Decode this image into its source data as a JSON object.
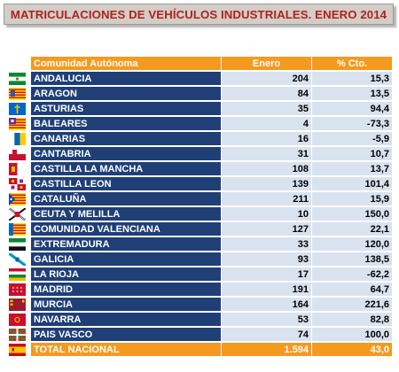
{
  "title": "MATRICULACIONES DE VEHÍCULOS INDUSTRIALES. ENERO 2014",
  "headers": {
    "region": "Comunidad Autónoma",
    "january": "Enero",
    "pct": "% Cto."
  },
  "rows": [
    {
      "region": "ANDALUCIA",
      "january": "204",
      "pct": "15,3",
      "flag": "andalucia-flag-icon"
    },
    {
      "region": "ARAGON",
      "january": "84",
      "pct": "13,5",
      "flag": "aragon-flag-icon"
    },
    {
      "region": "ASTURIAS",
      "january": "35",
      "pct": "94,4",
      "flag": "asturias-flag-icon"
    },
    {
      "region": "BALEARES",
      "january": "4",
      "pct": "-73,3",
      "flag": "baleares-flag-icon"
    },
    {
      "region": "CANARIAS",
      "january": "16",
      "pct": "-5,9",
      "flag": "canarias-flag-icon"
    },
    {
      "region": "CANTABRIA",
      "january": "31",
      "pct": "10,7",
      "flag": "cantabria-flag-icon"
    },
    {
      "region": "CASTILLA LA MANCHA",
      "january": "108",
      "pct": "13,7",
      "flag": "castilla-la-mancha-flag-icon"
    },
    {
      "region": "CASTILLA LEON",
      "january": "139",
      "pct": "101,4",
      "flag": "castilla-leon-flag-icon"
    },
    {
      "region": "CATALUÑA",
      "january": "211",
      "pct": "15,9",
      "flag": "cataluna-flag-icon"
    },
    {
      "region": "CEUTA Y MELILLA",
      "january": "10",
      "pct": "150,0",
      "flag": "ceuta-melilla-flag-icon"
    },
    {
      "region": "COMUNIDAD VALENCIANA",
      "january": "127",
      "pct": "22,1",
      "flag": "valencia-flag-icon"
    },
    {
      "region": "EXTREMADURA",
      "january": "33",
      "pct": "120,0",
      "flag": "extremadura-flag-icon"
    },
    {
      "region": "GALICIA",
      "january": "93",
      "pct": "138,5",
      "flag": "galicia-flag-icon"
    },
    {
      "region": "LA RIOJA",
      "january": "17",
      "pct": "-62,2",
      "flag": "la-rioja-flag-icon"
    },
    {
      "region": "MADRID",
      "january": "191",
      "pct": "64,7",
      "flag": "madrid-flag-icon"
    },
    {
      "region": "MURCIA",
      "january": "164",
      "pct": "221,6",
      "flag": "murcia-flag-icon"
    },
    {
      "region": "NAVARRA",
      "january": "53",
      "pct": "82,8",
      "flag": "navarra-flag-icon"
    },
    {
      "region": "PAIS VASCO",
      "january": "74",
      "pct": "100,0",
      "flag": "pais-vasco-flag-icon"
    }
  ],
  "total": {
    "region": "TOTAL NACIONAL",
    "january": "1.594",
    "pct": "43,0",
    "flag": "spain-flag-icon"
  },
  "colors": {
    "title_text": "#b0221f",
    "title_bg": "#d3cdc7",
    "header_bg": "#f39a1f",
    "region_bg": "#1f3f76",
    "value_bg": "#d9e2ef"
  }
}
